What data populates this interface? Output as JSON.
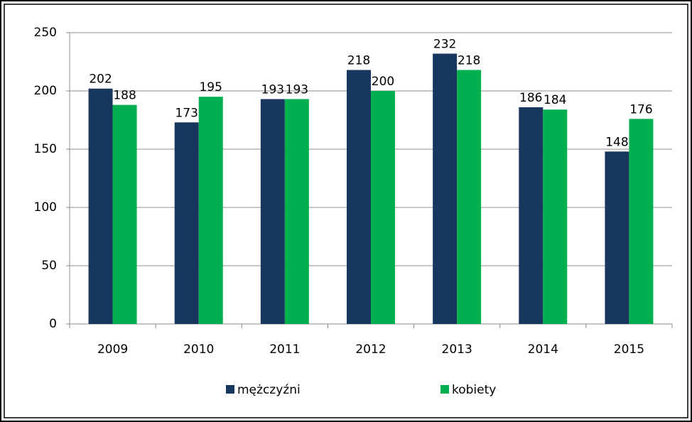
{
  "chart_data": {
    "type": "bar",
    "categories": [
      "2009",
      "2010",
      "2011",
      "2012",
      "2013",
      "2014",
      "2015"
    ],
    "series": [
      {
        "name": "mężczyźni",
        "color": "#17375e",
        "values": [
          202,
          173,
          193,
          218,
          232,
          186,
          148
        ]
      },
      {
        "name": "kobiety",
        "color": "#00b050",
        "values": [
          188,
          195,
          193,
          200,
          218,
          184,
          176
        ]
      }
    ],
    "ylim": [
      0,
      250
    ],
    "yticks": [
      0,
      50,
      100,
      150,
      200,
      250
    ],
    "grid": true,
    "legend": "bottom"
  }
}
